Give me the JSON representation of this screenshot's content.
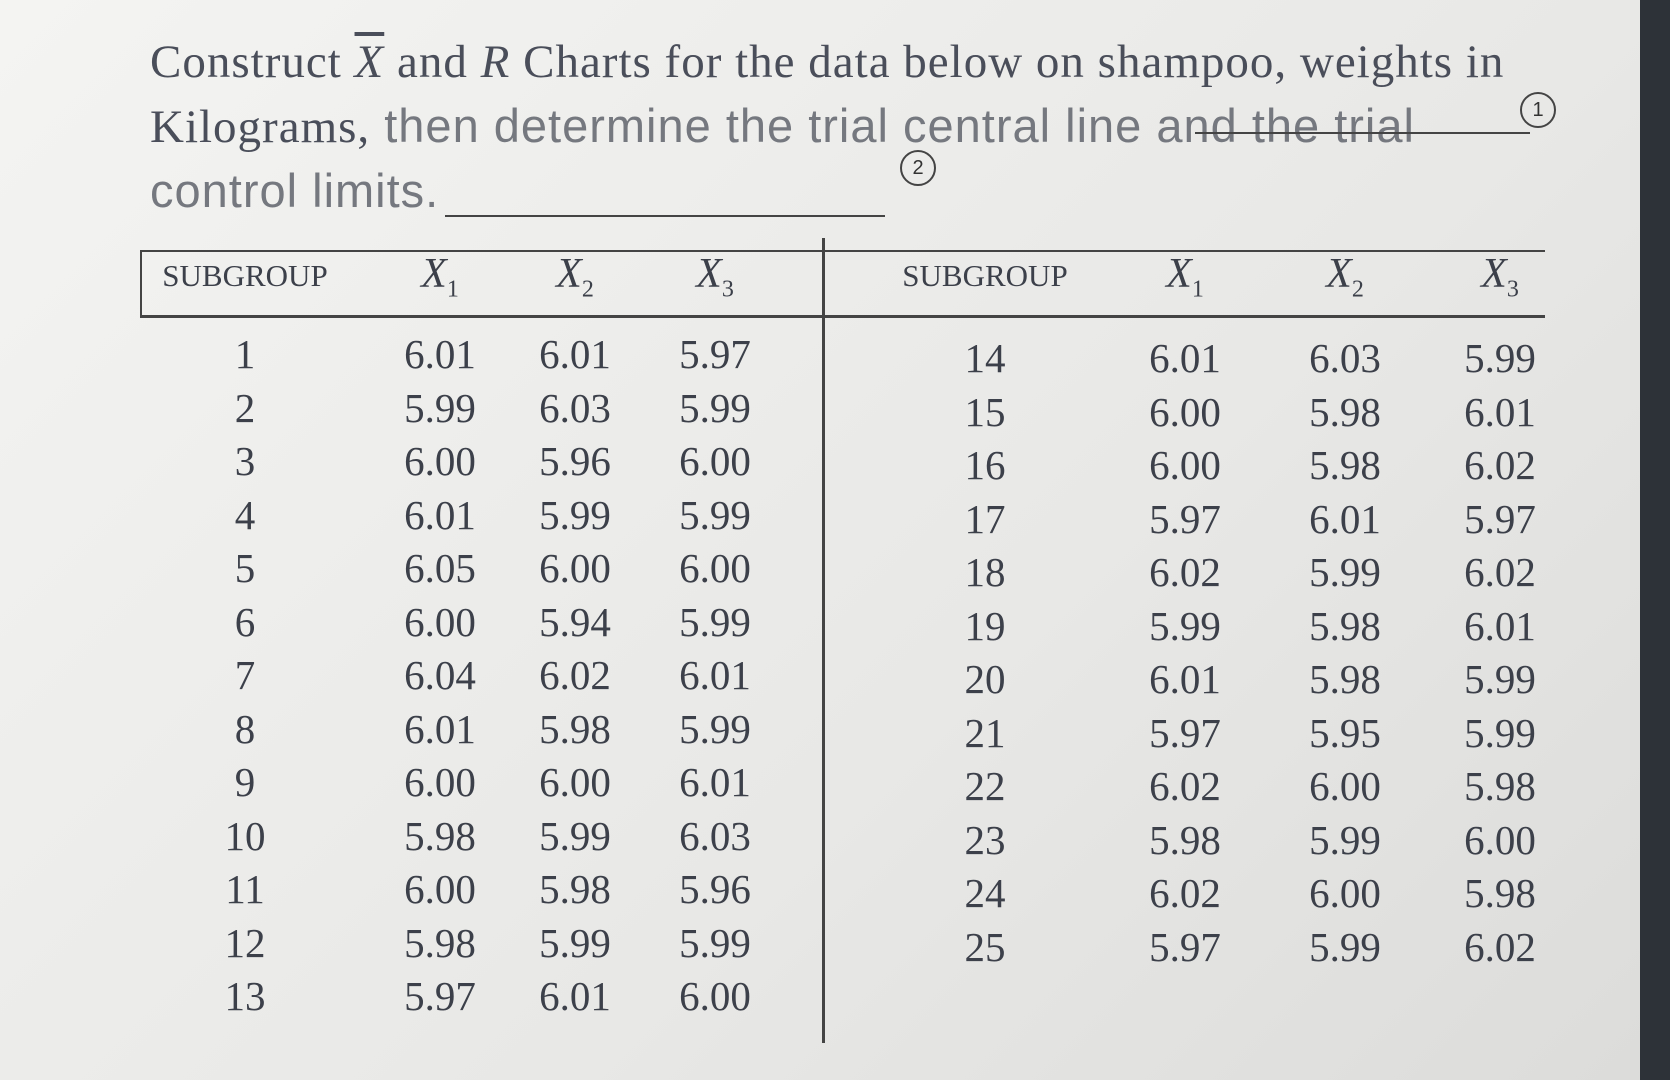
{
  "question": {
    "parts": [
      "Construct ",
      "X",
      " and ",
      "R",
      " Charts for the data below on shampoo, weights in Kilograms,",
      " then determine the trial central line and the trial control limits."
    ],
    "annotations": [
      "1",
      "2"
    ]
  },
  "table": {
    "header": [
      {
        "text": "SUBGROUP"
      },
      {
        "symbol": "X",
        "subscript": "1"
      },
      {
        "symbol": "X",
        "subscript": "2"
      },
      {
        "symbol": "X",
        "subscript": "3"
      }
    ],
    "left_rows": [
      [
        "1",
        "6.01",
        "6.01",
        "5.97"
      ],
      [
        "2",
        "5.99",
        "6.03",
        "5.99"
      ],
      [
        "3",
        "6.00",
        "5.96",
        "6.00"
      ],
      [
        "4",
        "6.01",
        "5.99",
        "5.99"
      ],
      [
        "5",
        "6.05",
        "6.00",
        "6.00"
      ],
      [
        "6",
        "6.00",
        "5.94",
        "5.99"
      ],
      [
        "7",
        "6.04",
        "6.02",
        "6.01"
      ],
      [
        "8",
        "6.01",
        "5.98",
        "5.99"
      ],
      [
        "9",
        "6.00",
        "6.00",
        "6.01"
      ],
      [
        "10",
        "5.98",
        "5.99",
        "6.03"
      ],
      [
        "11",
        "6.00",
        "5.98",
        "5.96"
      ],
      [
        "12",
        "5.98",
        "5.99",
        "5.99"
      ],
      [
        "13",
        "5.97",
        "6.01",
        "6.00"
      ]
    ],
    "right_rows": [
      [
        "14",
        "6.01",
        "6.03",
        "5.99"
      ],
      [
        "15",
        "6.00",
        "5.98",
        "6.01"
      ],
      [
        "16",
        "6.00",
        "5.98",
        "6.02"
      ],
      [
        "17",
        "5.97",
        "6.01",
        "5.97"
      ],
      [
        "18",
        "6.02",
        "5.99",
        "6.02"
      ],
      [
        "19",
        "5.99",
        "5.98",
        "6.01"
      ],
      [
        "20",
        "6.01",
        "5.98",
        "5.99"
      ],
      [
        "21",
        "5.97",
        "5.95",
        "5.99"
      ],
      [
        "22",
        "6.02",
        "6.00",
        "5.98"
      ],
      [
        "23",
        "5.98",
        "5.99",
        "6.00"
      ],
      [
        "24",
        "6.02",
        "6.00",
        "5.98"
      ],
      [
        "25",
        "5.97",
        "5.99",
        "6.02"
      ]
    ]
  }
}
